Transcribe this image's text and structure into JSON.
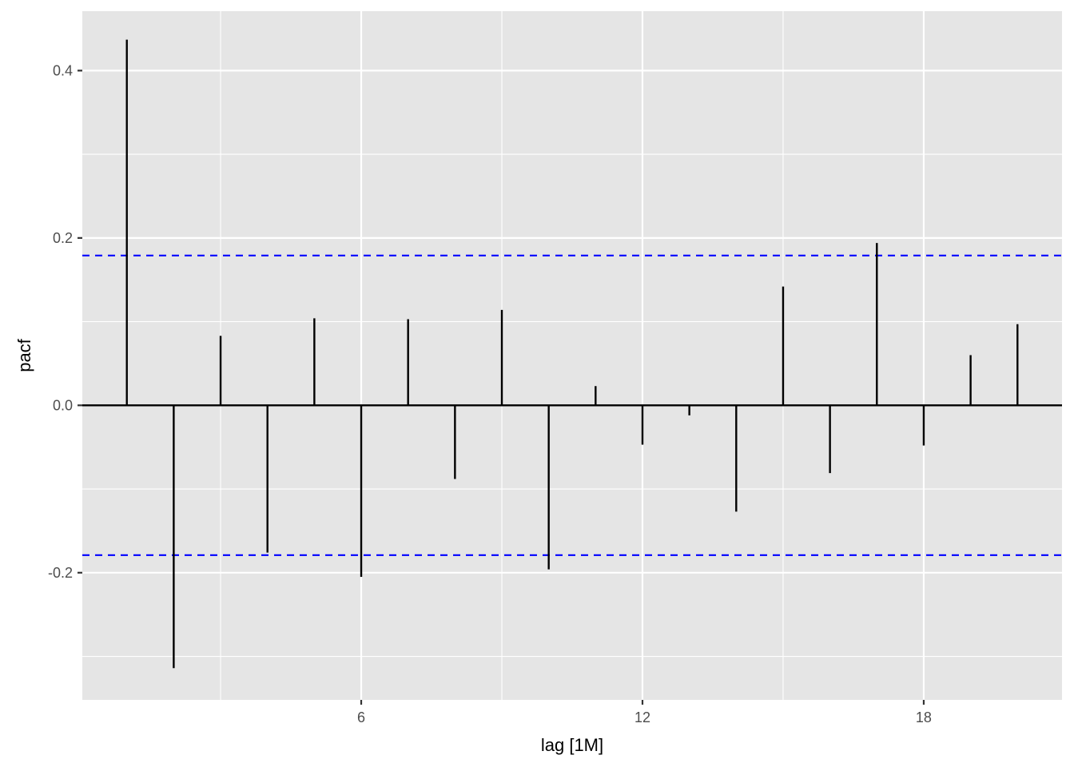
{
  "chart_data": {
    "type": "bar",
    "xlabel": "lag [1M]",
    "ylabel": "pacf",
    "xlim": [
      0.05,
      20.95
    ],
    "ylim": [
      -0.352,
      0.471
    ],
    "x_ticks": [
      6,
      12,
      18
    ],
    "y_ticks": [
      -0.2,
      0.0,
      0.2,
      0.4
    ],
    "y_tick_labels": [
      "-0.2",
      "0.0",
      "0.2",
      "0.4"
    ],
    "x_tick_labels": [
      "6",
      "12",
      "18"
    ],
    "lags": [
      1,
      2,
      3,
      4,
      5,
      6,
      7,
      8,
      9,
      10,
      11,
      12,
      13,
      14,
      15,
      16,
      17,
      18,
      19,
      20
    ],
    "values": [
      0.437,
      -0.314,
      0.083,
      -0.176,
      0.104,
      -0.205,
      0.103,
      -0.088,
      0.114,
      -0.196,
      0.023,
      -0.047,
      -0.012,
      -0.127,
      0.142,
      -0.081,
      0.194,
      -0.048,
      0.06,
      0.097
    ],
    "confidence_bounds": [
      0.179,
      -0.179
    ],
    "grid": true,
    "colors": {
      "panel": "#e5e5e5",
      "grid": "#ffffff",
      "bars": "#000000",
      "zero_line": "#000000",
      "bounds": "#0000ff"
    }
  }
}
